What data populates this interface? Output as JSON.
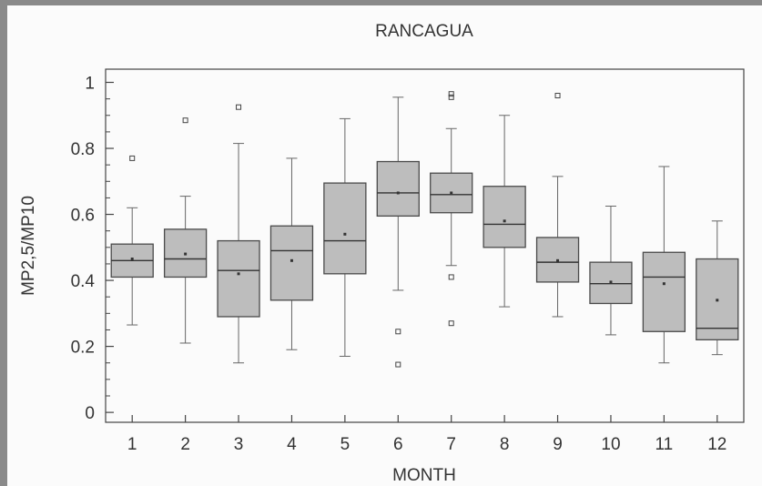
{
  "chart_data": {
    "type": "box",
    "title": "RANCAGUA",
    "xlabel": "MONTH",
    "ylabel": "MP2,5/MP10",
    "ylim": [
      -0.03,
      1.04
    ],
    "y_ticks": [
      "0",
      "0.2",
      "0.4",
      "0.6",
      "0.8",
      "1"
    ],
    "y_tick_values": [
      0,
      0.2,
      0.4,
      0.6,
      0.8,
      1.0
    ],
    "categories": [
      "1",
      "2",
      "3",
      "4",
      "5",
      "6",
      "7",
      "8",
      "9",
      "10",
      "11",
      "12"
    ],
    "grid": false,
    "box_color": "#bdbdbd",
    "boxes": [
      {
        "category": "1",
        "min": 0.265,
        "q1": 0.41,
        "median": 0.46,
        "q3": 0.51,
        "max": 0.62,
        "mean": 0.465,
        "outliers": [
          0.77
        ]
      },
      {
        "category": "2",
        "min": 0.21,
        "q1": 0.41,
        "median": 0.465,
        "q3": 0.555,
        "max": 0.655,
        "mean": 0.48,
        "outliers": [
          0.885
        ]
      },
      {
        "category": "3",
        "min": 0.15,
        "q1": 0.29,
        "median": 0.43,
        "q3": 0.52,
        "max": 0.815,
        "mean": 0.42,
        "outliers": [
          0.925
        ]
      },
      {
        "category": "4",
        "min": 0.19,
        "q1": 0.34,
        "median": 0.49,
        "q3": 0.565,
        "max": 0.77,
        "mean": 0.46,
        "outliers": []
      },
      {
        "category": "5",
        "min": 0.17,
        "q1": 0.42,
        "median": 0.52,
        "q3": 0.695,
        "max": 0.89,
        "mean": 0.54,
        "outliers": []
      },
      {
        "category": "6",
        "min": 0.37,
        "q1": 0.595,
        "median": 0.665,
        "q3": 0.76,
        "max": 0.955,
        "mean": 0.665,
        "outliers": [
          0.245,
          0.145
        ]
      },
      {
        "category": "7",
        "min": 0.445,
        "q1": 0.605,
        "median": 0.66,
        "q3": 0.725,
        "max": 0.86,
        "mean": 0.665,
        "outliers": [
          0.965,
          0.955,
          0.41,
          0.27
        ]
      },
      {
        "category": "8",
        "min": 0.32,
        "q1": 0.5,
        "median": 0.57,
        "q3": 0.685,
        "max": 0.9,
        "mean": 0.58,
        "outliers": []
      },
      {
        "category": "9",
        "min": 0.29,
        "q1": 0.395,
        "median": 0.455,
        "q3": 0.53,
        "max": 0.715,
        "mean": 0.46,
        "outliers": [
          0.96
        ]
      },
      {
        "category": "10",
        "min": 0.235,
        "q1": 0.33,
        "median": 0.39,
        "q3": 0.455,
        "max": 0.625,
        "mean": 0.395,
        "outliers": []
      },
      {
        "category": "11",
        "min": 0.15,
        "q1": 0.245,
        "median": 0.41,
        "q3": 0.485,
        "max": 0.745,
        "mean": 0.39,
        "outliers": []
      },
      {
        "category": "12",
        "min": 0.175,
        "q1": 0.22,
        "median": 0.255,
        "q3": 0.465,
        "max": 0.58,
        "mean": 0.34,
        "outliers": []
      }
    ]
  }
}
